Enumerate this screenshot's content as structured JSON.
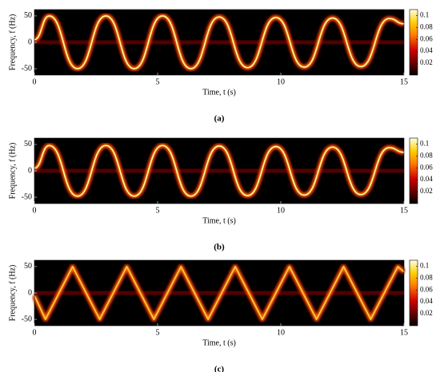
{
  "chart_data": [
    {
      "type": "spectrogram",
      "interpolation": "smooth",
      "caption": "(a)",
      "xlabel": "Time, t (s)",
      "ylabel": "Frequency, f (Hz)",
      "x": [
        0,
        0.6,
        1.75,
        2.9,
        4.05,
        5.2,
        6.35,
        7.5,
        8.65,
        9.8,
        10.95,
        12.1,
        13.25,
        14.4,
        15
      ],
      "values": [
        5,
        50,
        -50,
        50,
        -50,
        50,
        -50,
        48,
        -48,
        47,
        -47,
        46,
        -46,
        45,
        35
      ],
      "color": "#ffffa0",
      "xlim": [
        0,
        15
      ],
      "xticks": [
        0,
        5,
        10,
        15
      ],
      "ylim": [
        -62,
        62
      ],
      "yticks": [
        -50,
        0,
        50
      ],
      "clim": [
        0,
        0.11
      ],
      "cticks": [
        0.02,
        0.04,
        0.06,
        0.08,
        0.1
      ]
    },
    {
      "type": "spectrogram",
      "interpolation": "smooth",
      "caption": "(b)",
      "xlabel": "Time, t (s)",
      "ylabel": "Frequency, f (Hz)",
      "x": [
        0,
        0.6,
        1.75,
        2.9,
        4.05,
        5.2,
        6.35,
        7.5,
        8.65,
        9.8,
        10.95,
        12.1,
        13.25,
        14.4,
        15
      ],
      "values": [
        5,
        48,
        -48,
        48,
        -48,
        48,
        -48,
        47,
        -47,
        46,
        -46,
        45,
        -45,
        44,
        35
      ],
      "color": "#ffffa0",
      "xlim": [
        0,
        15
      ],
      "xticks": [
        0,
        5,
        10,
        15
      ],
      "ylim": [
        -62,
        62
      ],
      "yticks": [
        -50,
        0,
        50
      ],
      "clim": [
        0,
        0.11
      ],
      "cticks": [
        0.02,
        0.04,
        0.06,
        0.08,
        0.1
      ]
    },
    {
      "type": "spectrogram",
      "interpolation": "linear",
      "caption": "(c)",
      "xlabel": "Time, t (s)",
      "ylabel": "Frequency, f (Hz)",
      "x": [
        0,
        0.45,
        1.55,
        2.65,
        3.75,
        4.85,
        5.95,
        7.05,
        8.15,
        9.25,
        10.35,
        11.45,
        12.55,
        13.65,
        14.75,
        15
      ],
      "values": [
        -5,
        -50,
        50,
        -50,
        50,
        -50,
        50,
        -50,
        50,
        -50,
        50,
        -50,
        50,
        -50,
        50,
        40
      ],
      "color": "#ffd040",
      "xlim": [
        0,
        15
      ],
      "xticks": [
        0,
        5,
        10,
        15
      ],
      "ylim": [
        -62,
        62
      ],
      "yticks": [
        -50,
        0,
        50
      ],
      "clim": [
        0,
        0.11
      ],
      "cticks": [
        0.02,
        0.04,
        0.06,
        0.08,
        0.1
      ]
    }
  ]
}
